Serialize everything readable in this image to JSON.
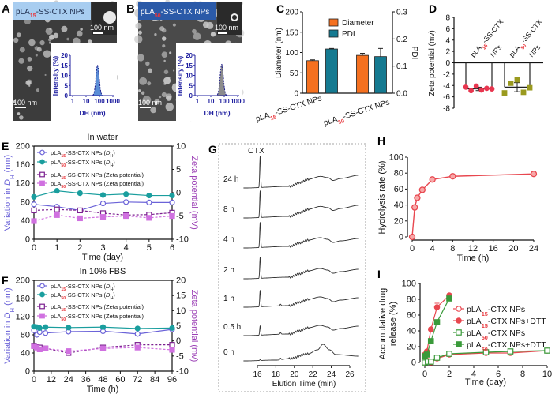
{
  "panels": {
    "A": {
      "letter": "A",
      "banner": "pLA15-SS-CTX NPs",
      "banner_color": "#a8cdf0",
      "banner_text_color": "#1b2a4a",
      "scale_top": "100 nm",
      "scale_bottom": "100 nm",
      "inset": {
        "ylabel": "Intensity (%)",
        "xlabel": "DH (nm)",
        "yticks": [
          "0",
          "5",
          "10",
          "15",
          "20"
        ],
        "xticks": [
          "1",
          "10",
          "100",
          "1000"
        ],
        "peak_nm": 72,
        "peak_intensity": 15,
        "fill": "#5b8ed6"
      }
    },
    "B": {
      "letter": "B",
      "banner": "pLA50-SS-CTX NPs",
      "banner_color": "#2b5aa8",
      "banner_text_color": "#ffffff",
      "scale_top": "100 nm",
      "scale_bottom": "100 nm",
      "inset": {
        "ylabel": "Intensity (%)",
        "xlabel": "DH (nm)",
        "yticks": [
          "0",
          "5",
          "10",
          "15",
          "20"
        ],
        "xticks": [
          "1",
          "10",
          "100",
          "1000"
        ],
        "peak_nm": 65,
        "peak_intensity": 15.5,
        "fill": "#8c8c8c"
      }
    }
  },
  "chart_data": [
    {
      "panel": "C",
      "type": "bar",
      "ylabel": "Diameter (nm)",
      "y2label": "PDI",
      "ylim": [
        0,
        200
      ],
      "y2lim": [
        0,
        0.3
      ],
      "yticks": [
        "0",
        "50",
        "100",
        "150",
        "200"
      ],
      "y2ticks": [
        "0.0",
        "0.1",
        "0.2",
        "0.3"
      ],
      "categories": [
        "pLA15-SS-CTX NPs",
        "pLA50-SS-CTX NPs"
      ],
      "series": [
        {
          "name": "Diameter",
          "axis": "left",
          "color": "#f5701f",
          "values": [
            80,
            93
          ],
          "errors": [
            2,
            5
          ]
        },
        {
          "name": "PDI",
          "axis": "right",
          "color": "#157a91",
          "values": [
            0.163,
            0.135
          ],
          "errors": [
            0.002,
            0.03
          ]
        }
      ],
      "legend": "top-right"
    },
    {
      "panel": "D",
      "type": "scatter-bar",
      "ylabel": "Zeta potential (mv)",
      "ylim": [
        -8,
        8
      ],
      "yticks": [
        "8",
        "6",
        "4",
        "2",
        "0",
        "-2",
        "-4",
        "-6",
        "-8"
      ],
      "categories": [
        {
          "line1": "pLA15-SS-CTX",
          "line2": "NPs",
          "mean": -4.6,
          "sd": 0.3,
          "points": [
            -4.3,
            -4.9,
            -4.1,
            -4.8,
            -4.5,
            -4.6
          ],
          "color": "#e8364f",
          "marker": "circle"
        },
        {
          "line1": "pLA50-SS-CTX",
          "line2": "NPs",
          "mean": -4.3,
          "sd": 0.8,
          "points": [
            -5.3,
            -3.6,
            -3.0,
            -5.2,
            -4.4
          ],
          "color": "#9a9a1f",
          "marker": "square"
        }
      ]
    },
    {
      "panel": "E",
      "type": "line",
      "title": "In water",
      "xlabel": "Time (day)",
      "ylabel": "Variation in DH (nm)",
      "y2label": "Zeta potential (mV)",
      "xlim": [
        0,
        6
      ],
      "ylim": [
        0,
        200
      ],
      "y2lim": [
        -10,
        10
      ],
      "xticks": [
        "0",
        "1",
        "2",
        "3",
        "4",
        "5",
        "6"
      ],
      "yticks": [
        "0",
        "40",
        "80",
        "120",
        "160",
        "200"
      ],
      "y2ticks": [
        "-10",
        "-5",
        "0",
        "5",
        "10"
      ],
      "x": [
        0,
        1,
        2,
        3,
        4,
        5,
        6
      ],
      "series": [
        {
          "name": "pLA15-SS-CTX NPs (DH)",
          "axis": "left",
          "color": "#6b63d8",
          "marker": "circle-open",
          "dash": false,
          "values": [
            75,
            70,
            62,
            77,
            80,
            79,
            79
          ]
        },
        {
          "name": "pLA50-SS-CTX NPs (DH)",
          "axis": "left",
          "color": "#1a9e9e",
          "marker": "circle-filled",
          "dash": false,
          "values": [
            91,
            104,
            99,
            95,
            97,
            94,
            94
          ]
        },
        {
          "name": "pLA15-SS-CTX NPs (Zeta potential)",
          "axis": "right",
          "color": "#7b1f8f",
          "marker": "square-open",
          "dash": true,
          "values": [
            -3.8,
            -3.6,
            -3.8,
            -4.4,
            -4.8,
            -4.7,
            -4.3
          ]
        },
        {
          "name": "pLA50-SS-CTX NPs (Zeta potential)",
          "axis": "right",
          "color": "#d070e0",
          "marker": "square-filled",
          "dash": true,
          "values": [
            -6.1,
            -4.8,
            -5.5,
            -5.2,
            -5.0,
            -5.4,
            -5.0
          ]
        }
      ],
      "legend": "top-left"
    },
    {
      "panel": "F",
      "type": "line",
      "title": "In 10% FBS",
      "xlabel": "Time (h)",
      "ylabel": "Variation in DH (nm)",
      "y2label": "Zeta potential (mv)",
      "xlim": [
        0,
        96
      ],
      "ylim": [
        0,
        200
      ],
      "y2lim": [
        -10,
        20
      ],
      "xticks": [
        "0",
        "12",
        "24",
        "36",
        "48",
        "60",
        "72",
        "84",
        "96"
      ],
      "yticks": [
        "0",
        "40",
        "80",
        "120",
        "160",
        "200"
      ],
      "y2ticks": [
        "-10",
        "-5",
        "0",
        "5",
        "10",
        "15",
        "20"
      ],
      "x": [
        0,
        2,
        4,
        8,
        24,
        48,
        72,
        96
      ],
      "series": [
        {
          "name": "pLA15-SS-CTX NPs (DH)",
          "axis": "left",
          "color": "#6b63d8",
          "marker": "circle-open",
          "dash": false,
          "values": [
            90,
            80,
            86,
            84,
            87,
            88,
            82,
            92
          ]
        },
        {
          "name": "pLA50-SS-CTX NPs (DH)",
          "axis": "left",
          "color": "#1a9e9e",
          "marker": "circle-filled",
          "dash": false,
          "values": [
            98,
            97,
            95,
            97,
            96,
            97,
            94,
            95
          ]
        },
        {
          "name": "pLA15-SS-CTX NPs (Zeta potential)",
          "axis": "right",
          "color": "#7b1f8f",
          "marker": "square-open",
          "dash": true,
          "values": [
            -1.6,
            -1.9,
            -2.2,
            -2.5,
            -4.0,
            -2.2,
            -1.3,
            -1.3
          ]
        },
        {
          "name": "pLA50-SS-CTX NPs (Zeta potential)",
          "axis": "right",
          "color": "#d070e0",
          "marker": "square-filled",
          "dash": true,
          "values": [
            -1.75,
            -2.2,
            -2.8,
            -2.5,
            -3.4,
            -2.5,
            -2.2,
            -2.95
          ]
        }
      ],
      "legend": "top-left"
    },
    {
      "panel": "G",
      "type": "line",
      "xlabel": "Elution Time (min)",
      "xlim": [
        14.5,
        27
      ],
      "xticks": [
        "16",
        "18",
        "20",
        "22",
        "24",
        "26"
      ],
      "peak_label": "CTX",
      "peak_time": 16.3,
      "traces": [
        "24 h",
        "8 h",
        "4 h",
        "2 h",
        "1 h",
        "0.5 h",
        "0 h"
      ],
      "ctx_peak_relative": [
        40,
        34,
        32,
        27,
        21,
        12,
        1
      ]
    },
    {
      "panel": "H",
      "type": "line",
      "xlabel": "Time (h)",
      "ylabel": "Hydrolysis rate (%)",
      "xlim": [
        0,
        24
      ],
      "ylim": [
        0,
        100
      ],
      "xticks": [
        "0",
        "4",
        "8",
        "12",
        "16",
        "20",
        "24"
      ],
      "yticks": [
        "0",
        "20",
        "40",
        "60",
        "80",
        "100"
      ],
      "x": [
        0,
        0.5,
        1,
        2,
        4,
        8,
        24
      ],
      "values": [
        0,
        37,
        49,
        59,
        72,
        76,
        79
      ],
      "color": "#e8474f"
    },
    {
      "panel": "I",
      "type": "line",
      "xlabel": "Time (day)",
      "ylabel": [
        "Accumulative drug",
        "release (%)"
      ],
      "xlim": [
        0,
        10
      ],
      "ylim": [
        0,
        100
      ],
      "xticks": [
        "0",
        "2",
        "4",
        "6",
        "8",
        "10"
      ],
      "yticks": [
        "0",
        "20",
        "40",
        "60",
        "80",
        "100"
      ],
      "series": [
        {
          "name": "pLA15-CTX NPs",
          "color": "#e8474f",
          "marker": "circle-open",
          "x": [
            0,
            0.25,
            0.5,
            1,
            2,
            5,
            7,
            10
          ],
          "values": [
            0,
            2,
            0,
            5,
            10,
            12,
            12,
            15
          ]
        },
        {
          "name": "pLA15-CTX NPs+DTT",
          "color": "#e8474f",
          "marker": "circle-filled",
          "x": [
            0,
            0.17,
            0.5,
            1,
            2
          ],
          "values": [
            10,
            14,
            42,
            70,
            85
          ],
          "errors": [
            0,
            0,
            0,
            5,
            2
          ]
        },
        {
          "name": "pLA50-CTX NPs",
          "color": "#3a9a3a",
          "marker": "square-open",
          "x": [
            0,
            0.25,
            0.5,
            1,
            2,
            5,
            7,
            10
          ],
          "values": [
            0,
            1,
            1,
            6,
            11,
            13,
            14,
            15
          ]
        },
        {
          "name": "pLA50-CTX NPs+DTT",
          "color": "#3a9a3a",
          "marker": "square-filled",
          "x": [
            0,
            0.17,
            0.5,
            1,
            2
          ],
          "values": [
            8,
            10,
            27,
            51,
            81
          ]
        }
      ],
      "legend": "right"
    }
  ]
}
